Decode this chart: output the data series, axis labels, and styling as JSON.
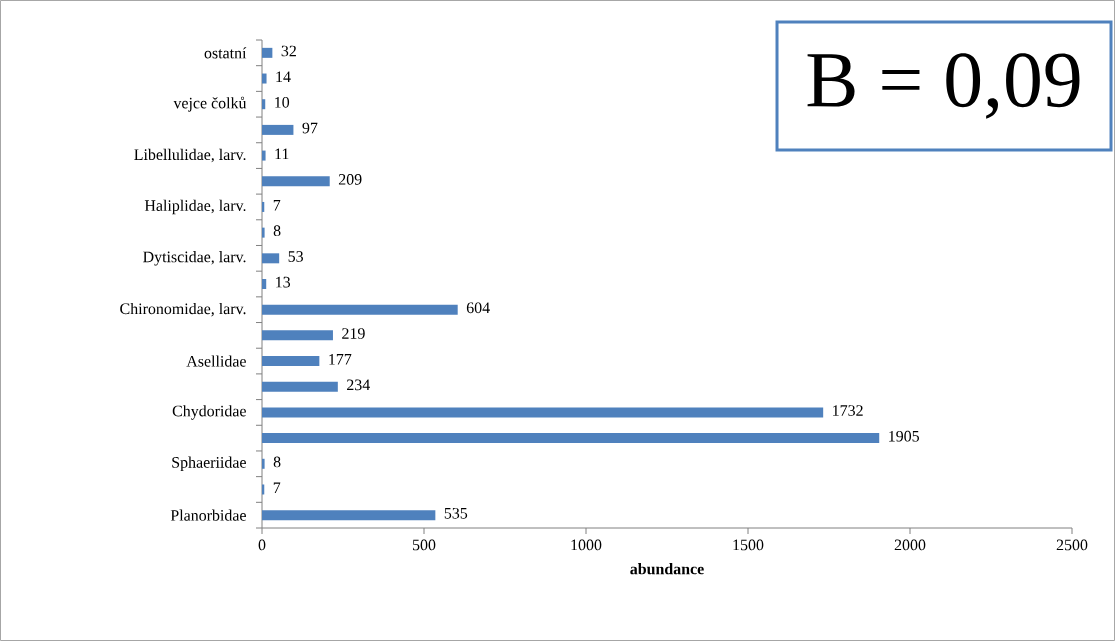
{
  "chart_data": {
    "type": "bar",
    "orientation": "horizontal",
    "xlabel": "**abundance**",
    "categories": [
      "ostatní",
      null,
      "vejce čolků",
      null,
      "Libellulidae, larv.",
      null,
      "Haliplidae, larv.",
      null,
      "Dytiscidae, larv.",
      null,
      "Chironomidae, larv.",
      null,
      "Asellidae",
      null,
      "Chydoridae",
      null,
      "Sphaeriidae",
      null,
      "Planorbidae"
    ],
    "values": [
      32,
      14,
      10,
      97,
      11,
      209,
      7,
      8,
      53,
      13,
      604,
      219,
      177,
      234,
      1732,
      1905,
      8,
      7,
      535
    ],
    "color": "#4f81bd",
    "data_labels": true,
    "xlim": [
      0,
      2500
    ],
    "xticks": [
      0,
      500,
      1000,
      1500,
      2000,
      2500
    ],
    "annotations": [
      "B = 0,09"
    ]
  }
}
